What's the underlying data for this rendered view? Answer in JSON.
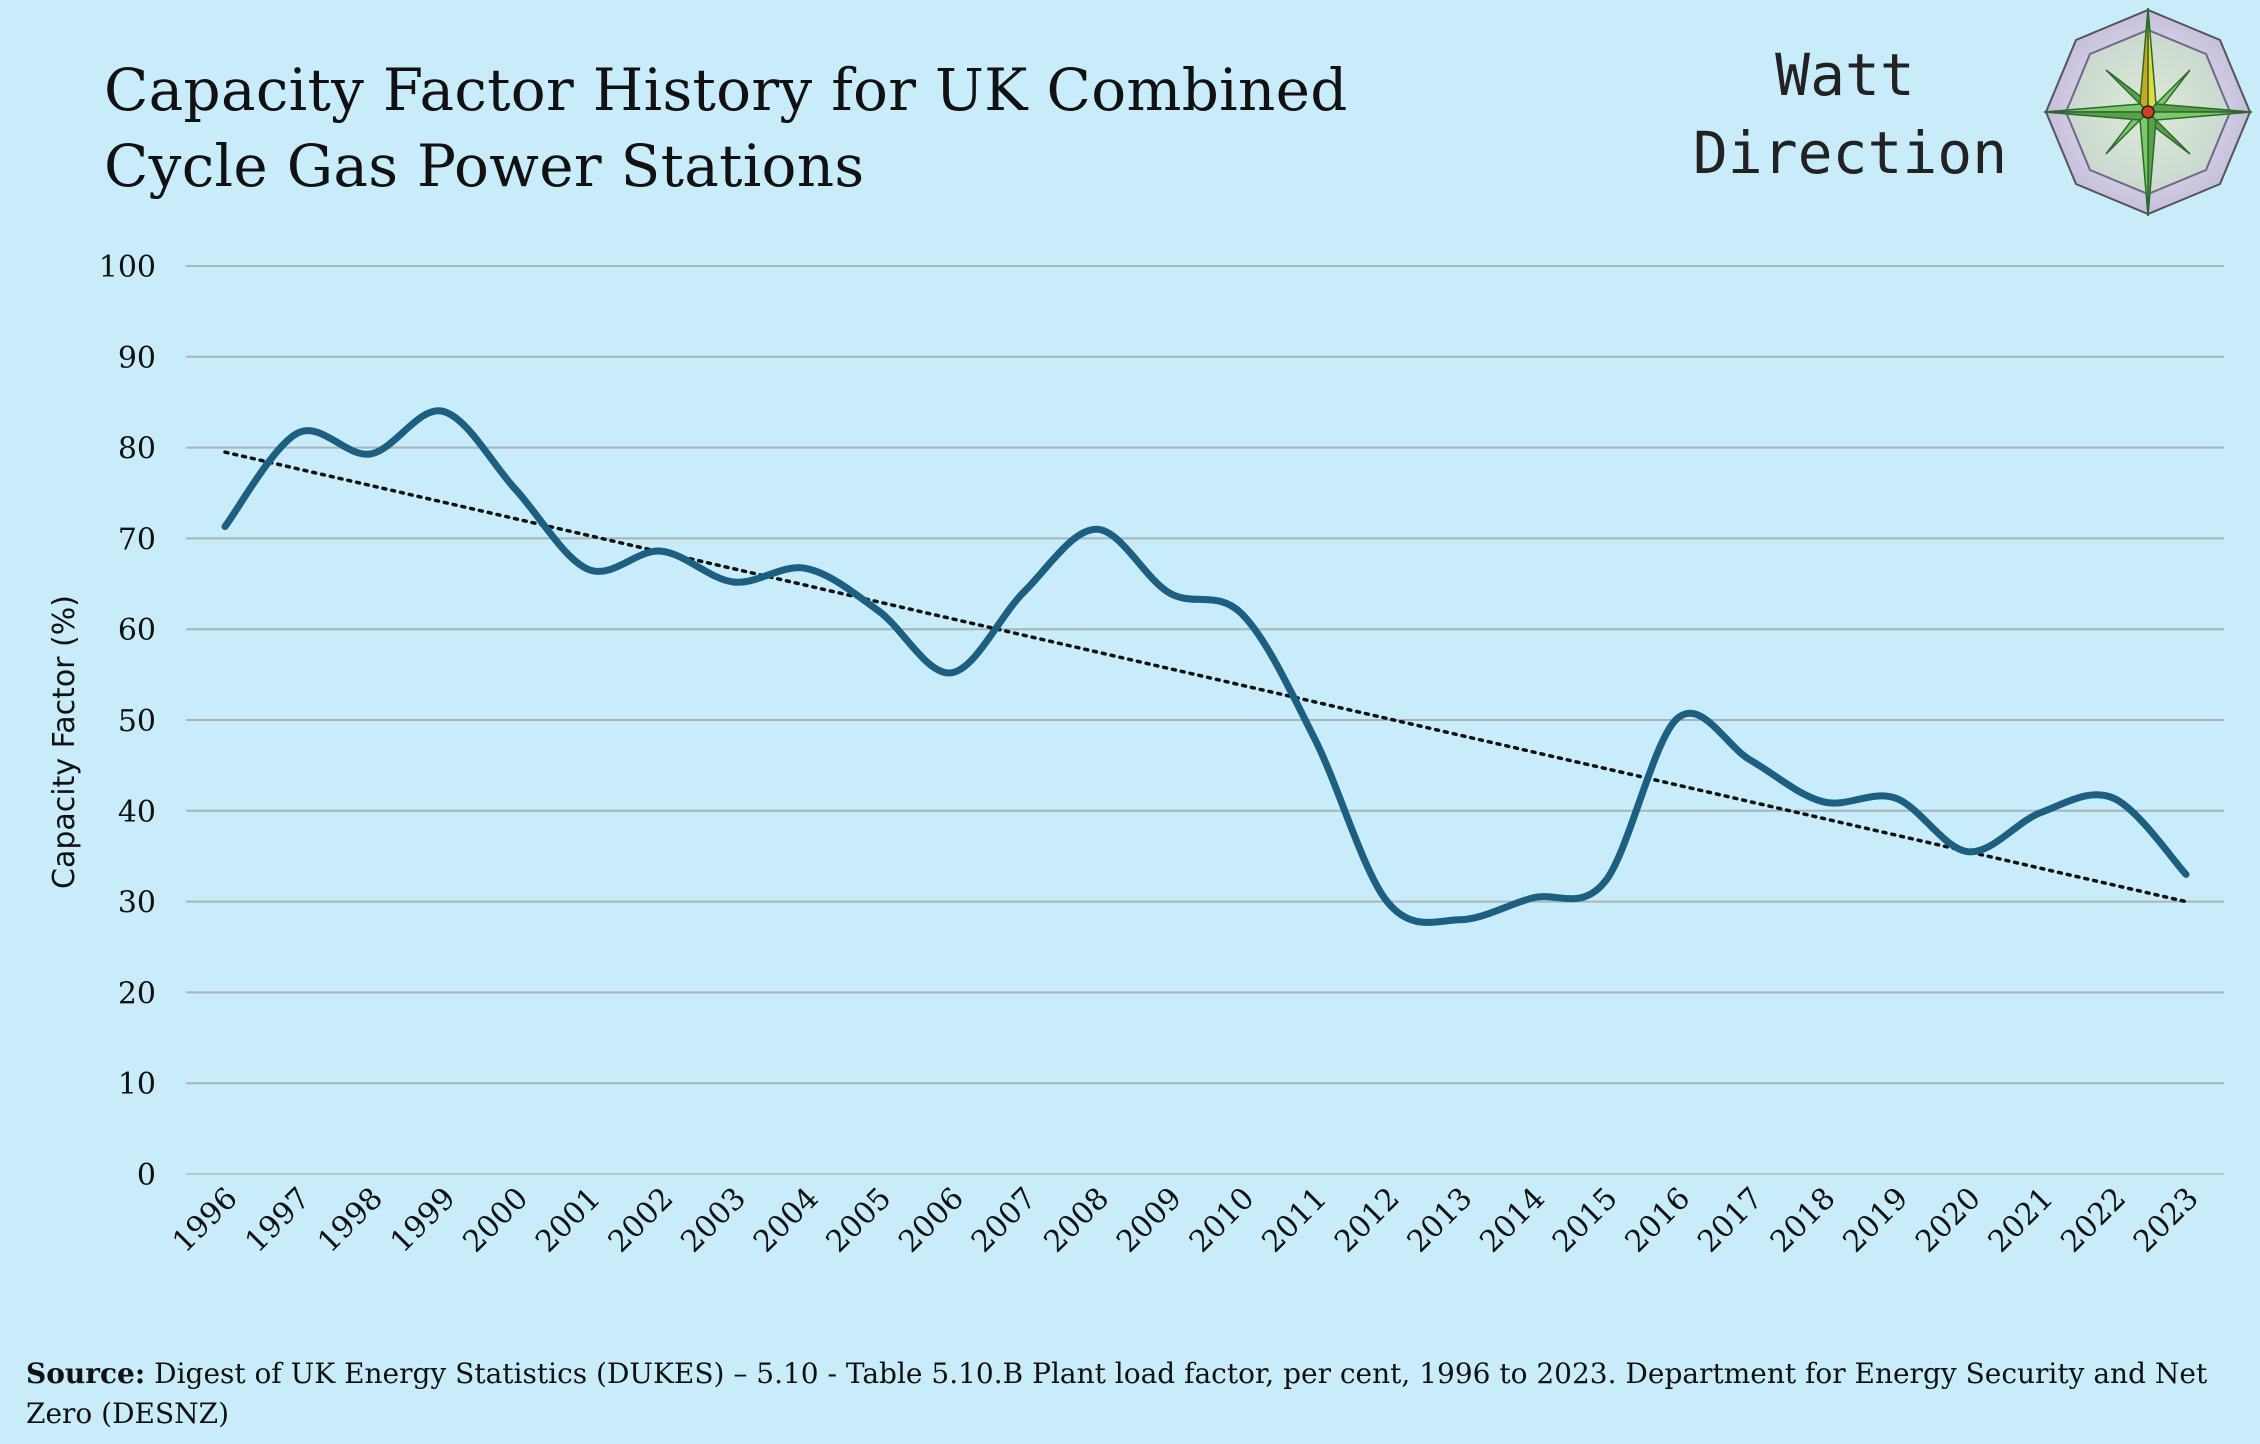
{
  "title_lines": [
    "Capacity Factor History for UK Combined",
    "Cycle Gas Power Stations"
  ],
  "logo": {
    "line1": "Watt",
    "line2": "Direction",
    "icon": "compass-rose-icon"
  },
  "source": {
    "label": "Source:",
    "text": "Digest of UK Energy Statistics (DUKES) – 5.10 - Table 5.10.B Plant load factor, per cent, 1996 to 2023. Department for Energy Security and Net Zero (DESNZ)"
  },
  "chart_data": {
    "type": "line",
    "title": "Capacity Factor History for UK Combined Cycle Gas Power Stations",
    "xlabel": "",
    "ylabel": "Capacity Factor (%)",
    "ylim": [
      0,
      100
    ],
    "yticks": [
      0,
      10,
      20,
      30,
      40,
      50,
      60,
      70,
      80,
      90,
      100
    ],
    "grid": true,
    "legend": "none",
    "categories": [
      "1996",
      "1997",
      "1998",
      "1999",
      "2000",
      "2001",
      "2002",
      "2003",
      "2004",
      "2005",
      "2006",
      "2007",
      "2008",
      "2009",
      "2010",
      "2011",
      "2012",
      "2013",
      "2014",
      "2015",
      "2016",
      "2017",
      "2018",
      "2019",
      "2020",
      "2021",
      "2022",
      "2023"
    ],
    "series": [
      {
        "values": [
          71.3,
          81.6,
          79.3,
          84.0,
          75.4,
          66.6,
          68.6,
          65.2,
          66.7,
          62.0,
          55.2,
          64.1,
          71.0,
          64.0,
          61.7,
          48.0,
          30.0,
          28.0,
          30.4,
          32.2,
          50.2,
          45.6,
          41.0,
          41.4,
          35.5,
          39.8,
          41.4,
          33.0
        ],
        "color": "#1c5f80",
        "smooth": true
      }
    ],
    "trendline": {
      "type": "linear",
      "start": 79.5,
      "end": 30.0,
      "color": "#111111",
      "style": "dotted"
    },
    "colors": {
      "background": "#c9ecfa",
      "gridline": "#a6b4bb",
      "line": "#1c5f80"
    }
  }
}
